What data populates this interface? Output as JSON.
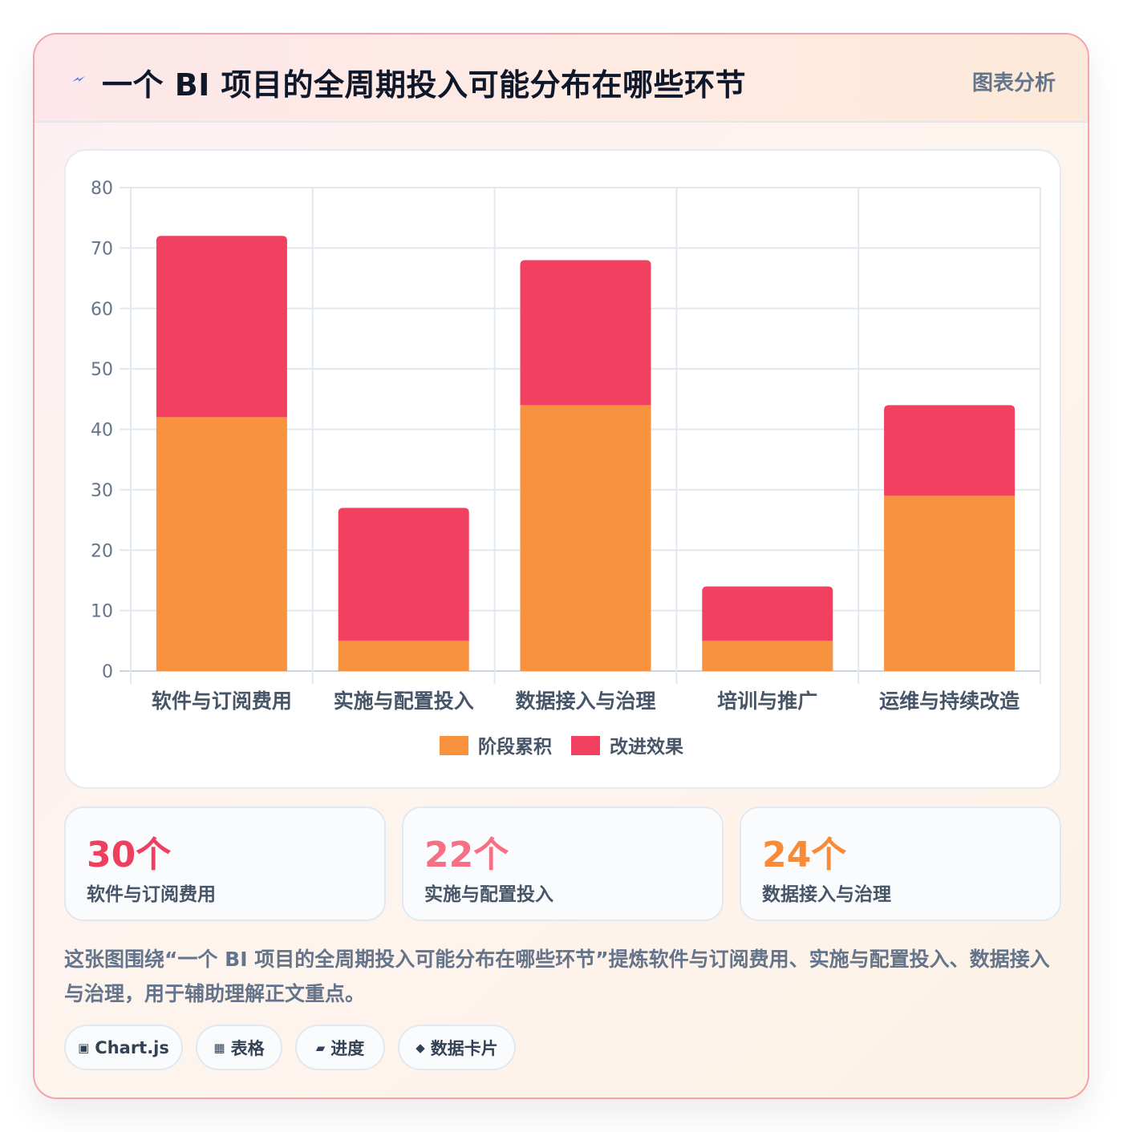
{
  "header": {
    "title": "一个 BI 项目的全周期投入可能分布在哪些环节",
    "tag": "图表分析",
    "icon": "lightning-icon"
  },
  "chart_data": {
    "type": "bar",
    "stacked": true,
    "categories": [
      "软件与订阅费用",
      "实施与配置投入",
      "数据接入与治理",
      "培训与推广",
      "运维与持续改造"
    ],
    "series": [
      {
        "name": "阶段累积",
        "color": "#f9923f",
        "values": [
          42,
          5,
          44,
          5,
          29
        ]
      },
      {
        "name": "改进效果",
        "color": "#f24060",
        "values": [
          30,
          22,
          24,
          9,
          15
        ]
      }
    ],
    "ylim": [
      0,
      80
    ],
    "yticks": [
      0,
      10,
      20,
      30,
      40,
      50,
      60,
      70,
      80
    ],
    "grid": true,
    "legend": "bottom"
  },
  "stats": [
    {
      "value": "30个",
      "label": "软件与订阅费用",
      "color": "#ef3f5f"
    },
    {
      "value": "22个",
      "label": "实施与配置投入",
      "color": "#f76f85"
    },
    {
      "value": "24个",
      "label": "数据接入与治理",
      "color": "#f98a36"
    }
  ],
  "description": "这张图围绕“一个 BI 项目的全周期投入可能分布在哪些环节”提炼软件与订阅费用、实施与配置投入、数据接入与治理，用于辅助理解正文重点。",
  "chips": [
    {
      "icon": "▣",
      "label": "Chart.js"
    },
    {
      "icon": "▦",
      "label": "表格"
    },
    {
      "icon": "▰",
      "label": "进度"
    },
    {
      "icon": "◆",
      "label": "数据卡片"
    }
  ]
}
